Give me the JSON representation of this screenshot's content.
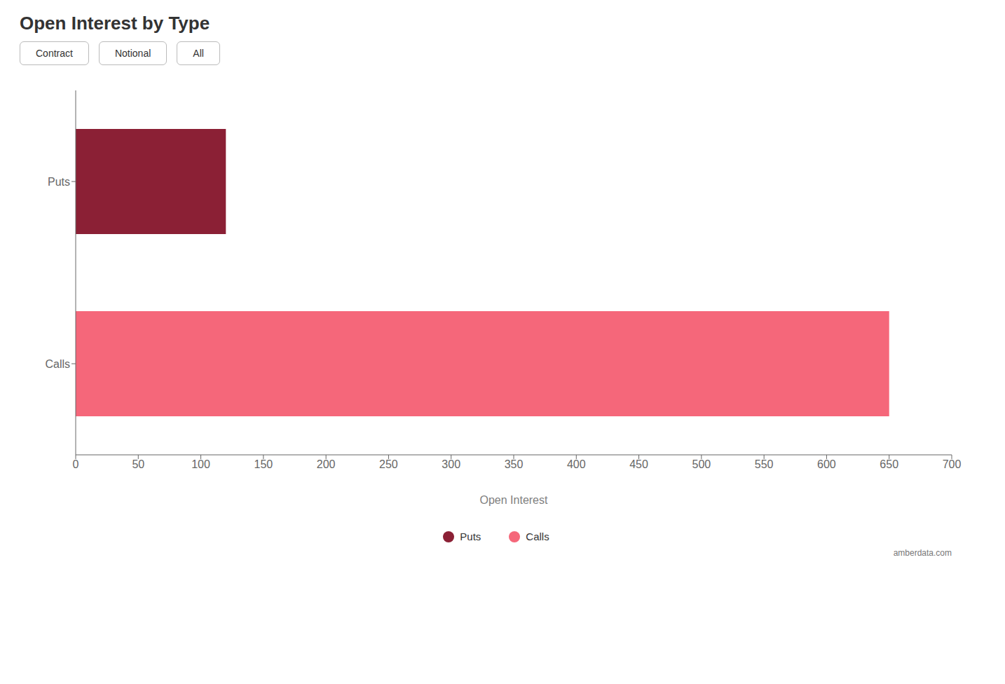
{
  "chart_data": {
    "type": "bar",
    "title": "Open Interest by Type",
    "orientation": "horizontal",
    "categories": [
      "Calls",
      "Puts"
    ],
    "values": [
      650,
      120
    ],
    "colors": [
      "#F5677A",
      "#8B2035"
    ],
    "xlabel": "Open Interest",
    "xlim": [
      0,
      700
    ],
    "xticks": [
      0,
      50,
      100,
      150,
      200,
      250,
      300,
      350,
      400,
      450,
      500,
      550,
      600,
      650,
      700
    ],
    "grid": false,
    "legend": "bottom",
    "annotations": [
      "Contract",
      "Notional",
      "All",
      "amberdata.com"
    ]
  }
}
